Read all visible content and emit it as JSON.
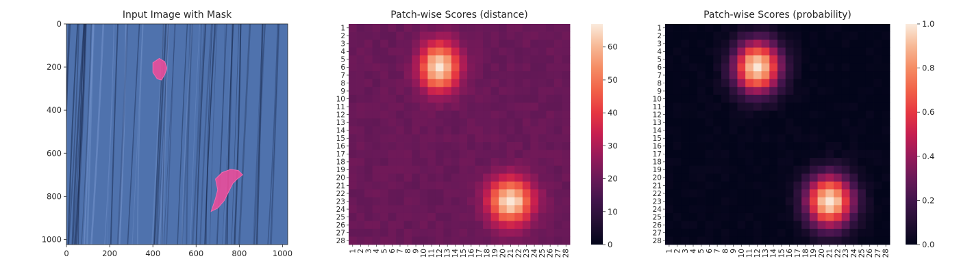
{
  "figure": {
    "background": "#ffffff",
    "text_color": "#262626"
  },
  "chart_data": [
    {
      "type": "image",
      "title": "Input Image with Mask",
      "xlabel": "",
      "ylabel": "",
      "xlim": [
        0,
        1024
      ],
      "ylim": [
        1024,
        0
      ],
      "xticks": [
        0,
        200,
        400,
        600,
        800,
        1000
      ],
      "yticks": [
        0,
        200,
        400,
        600,
        800,
        1000
      ],
      "background_color": "#4f72ad",
      "mask_color": "#ee4c9b",
      "mask_regions": [
        {
          "points": [
            [
              400,
              180
            ],
            [
              430,
              160
            ],
            [
              455,
              175
            ],
            [
              465,
              205
            ],
            [
              455,
              235
            ],
            [
              440,
              260
            ],
            [
              420,
              255
            ],
            [
              400,
              225
            ]
          ]
        },
        {
          "points": [
            [
              670,
              870
            ],
            [
              690,
              810
            ],
            [
              700,
              770
            ],
            [
              690,
              720
            ],
            [
              720,
              690
            ],
            [
              760,
              675
            ],
            [
              795,
              680
            ],
            [
              815,
              700
            ],
            [
              790,
              720
            ],
            [
              770,
              740
            ],
            [
              750,
              780
            ],
            [
              730,
              820
            ],
            [
              700,
              855
            ]
          ]
        }
      ],
      "grid": false
    },
    {
      "type": "heatmap",
      "title": "Patch-wise Scores (distance)",
      "xlabel": "",
      "ylabel": "",
      "rows": 28,
      "cols": 28,
      "tick_labels": [
        "1",
        "2",
        "3",
        "4",
        "5",
        "6",
        "7",
        "8",
        "9",
        "10",
        "11",
        "12",
        "13",
        "14",
        "15",
        "16",
        "17",
        "18",
        "19",
        "20",
        "21",
        "22",
        "23",
        "24",
        "25",
        "26",
        "27",
        "28"
      ],
      "vmin": 0,
      "vmax": 67,
      "colorbar_ticks": [
        0,
        10,
        20,
        30,
        40,
        50,
        60
      ],
      "colorscale": "rocket",
      "baseline": 20,
      "peaks": [
        {
          "row": 6,
          "col": 12,
          "peak": 67,
          "sigma_row": 2.1,
          "sigma_col": 1.7
        },
        {
          "row": 23,
          "col": 21,
          "peak": 67,
          "sigma_row": 2.0,
          "sigma_col": 1.9
        }
      ],
      "grid": false
    },
    {
      "type": "heatmap",
      "title": "Patch-wise Scores (probability)",
      "xlabel": "",
      "ylabel": "",
      "rows": 28,
      "cols": 28,
      "tick_labels": [
        "1",
        "2",
        "3",
        "4",
        "5",
        "6",
        "7",
        "8",
        "9",
        "10",
        "11",
        "12",
        "13",
        "14",
        "15",
        "16",
        "17",
        "18",
        "19",
        "20",
        "21",
        "22",
        "23",
        "24",
        "25",
        "26",
        "27",
        "28"
      ],
      "vmin": 0.0,
      "vmax": 1.0,
      "colorbar_ticks": [
        0.0,
        0.2,
        0.4,
        0.6,
        0.8,
        1.0
      ],
      "colorscale": "rocket",
      "baseline": 0.0,
      "peaks": [
        {
          "row": 6,
          "col": 12,
          "peak": 1.0,
          "sigma_row": 2.3,
          "sigma_col": 2.0
        },
        {
          "row": 23,
          "col": 21,
          "peak": 1.0,
          "sigma_row": 2.3,
          "sigma_col": 2.0
        }
      ],
      "grid": false
    }
  ]
}
